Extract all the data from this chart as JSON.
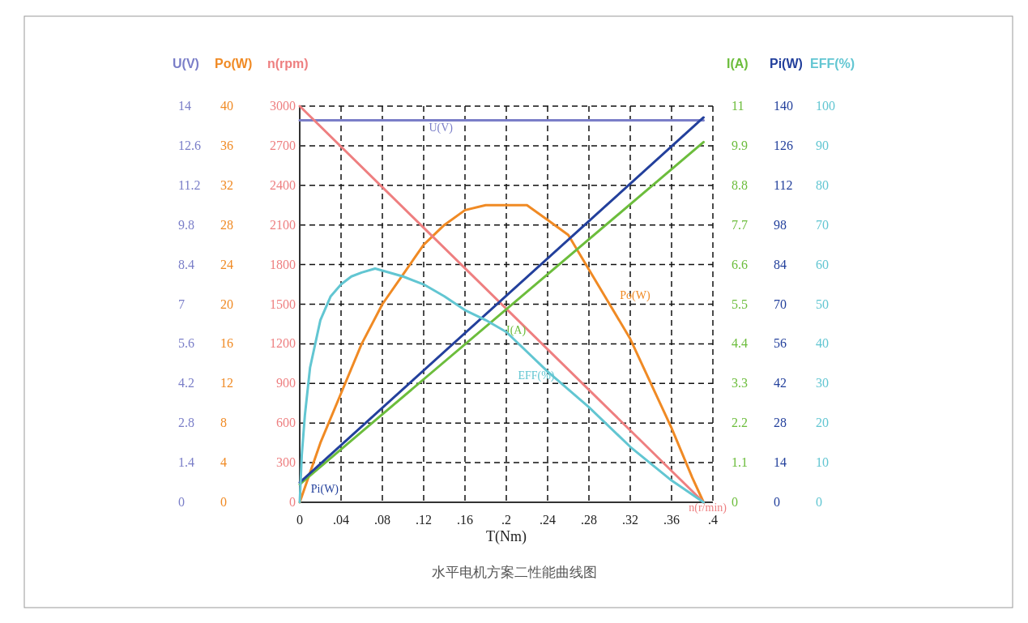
{
  "chart_data": [
    {
      "type": "line",
      "xlabel": "T(Nm)",
      "ylabel": "n(rpm)",
      "y2label": "Po(W)",
      "y3label": "U(V)",
      "xlim": [
        0,
        0.4
      ],
      "xticks": [
        0,
        {
          "value": 0.04,
          "label": ".04"
        },
        {
          "value": 0.08,
          "label": ".08"
        },
        {
          "value": 0.12,
          "label": ".12"
        },
        {
          "value": 0.16,
          "label": ".16"
        },
        {
          "value": 0.2,
          "label": ".2"
        },
        {
          "value": 0.24,
          "label": ".24"
        },
        {
          "value": 0.28,
          "label": ".28"
        },
        {
          "value": 0.32,
          "label": ".32"
        },
        {
          "value": 0.36,
          "label": ".36"
        },
        {
          "value": 0.4,
          "label": ".4"
        }
      ],
      "ylim": [
        0,
        3000
      ],
      "yticks": [
        0,
        300,
        600,
        900,
        1200,
        1500,
        1800,
        2100,
        2400,
        2700,
        3000
      ],
      "y2lim": [
        0,
        40
      ],
      "y2ticks": [
        0,
        4,
        8,
        12,
        16,
        20,
        24,
        28,
        32,
        36,
        40
      ],
      "y3lim": [
        0,
        14
      ],
      "y3ticks": [
        0,
        1.4,
        2.8,
        4.2,
        5.6,
        7,
        8.4,
        9.8,
        11.2,
        12.6,
        14
      ],
      "grid": true,
      "marker": "none",
      "line_style": "solid",
      "annotations": [
        "水平电机方案二性能曲线图"
      ],
      "series": [
        {
          "name": "U(V)",
          "color": "#7a7ec8",
          "axis": "y3",
          "x": [
            0,
            0.391
          ],
          "values": [
            13.5,
            13.5
          ]
        },
        {
          "name": "Po(W)",
          "color": "#f08a24",
          "axis": "y2",
          "x": [
            0,
            0.02,
            0.04,
            0.06,
            0.08,
            0.1,
            0.12,
            0.14,
            0.16,
            0.18,
            0.2,
            0.22,
            0.24,
            0.26,
            0.28,
            0.3,
            0.32,
            0.34,
            0.36,
            0.38,
            0.391
          ],
          "values": [
            0,
            6,
            11,
            16,
            20,
            23,
            26,
            28,
            29.5,
            30,
            30,
            30,
            28.5,
            27,
            23.5,
            20,
            16.5,
            12,
            7.5,
            2.5,
            0
          ]
        },
        {
          "name": "n(r/min)",
          "color": "#ee7f80",
          "axis": "y",
          "x": [
            0,
            0.391
          ],
          "values": [
            3000,
            0
          ]
        }
      ]
    },
    {
      "type": "line",
      "tick_labels": "y",
      "ylabel": "I(A)",
      "y2label": "Pi(W)",
      "y3label": "EFF(%)",
      "xlim": [
        0,
        0.4
      ],
      "ylim": [
        0,
        11
      ],
      "yticks": [
        0,
        1.1,
        2.2,
        3.3,
        4.4,
        5.5,
        6.6,
        7.7,
        8.8,
        9.9,
        11
      ],
      "y2lim": [
        0,
        140
      ],
      "y2ticks": [
        0,
        14,
        28,
        42,
        56,
        70,
        84,
        98,
        112,
        126,
        140
      ],
      "y3lim": [
        0,
        100
      ],
      "y3ticks": [
        0,
        10,
        20,
        30,
        40,
        50,
        60,
        70,
        80,
        90,
        100
      ],
      "marker": "none",
      "line_style": "solid",
      "series": [
        {
          "name": "I(A)",
          "color": "#6cbd3c",
          "axis": "y",
          "x": [
            0,
            0.391
          ],
          "values": [
            0.5,
            10
          ]
        },
        {
          "name": "Pi(W)",
          "color": "#23409c",
          "axis": "y2",
          "x": [
            0,
            0.391
          ],
          "values": [
            7,
            136
          ]
        },
        {
          "name": "EFF(%)",
          "color": "#62c6d2",
          "axis": "y3",
          "x": [
            0,
            0.002,
            0.005,
            0.01,
            0.02,
            0.03,
            0.04,
            0.05,
            0.06,
            0.073,
            0.08,
            0.1,
            0.12,
            0.14,
            0.16,
            0.18,
            0.2,
            0.24,
            0.28,
            0.32,
            0.36,
            0.391
          ],
          "values": [
            0,
            12,
            22,
            34,
            46,
            52,
            55,
            57,
            58,
            59,
            58.5,
            57,
            55,
            52,
            48.5,
            46,
            43,
            33,
            24,
            14,
            5.5,
            0
          ]
        }
      ]
    }
  ]
}
